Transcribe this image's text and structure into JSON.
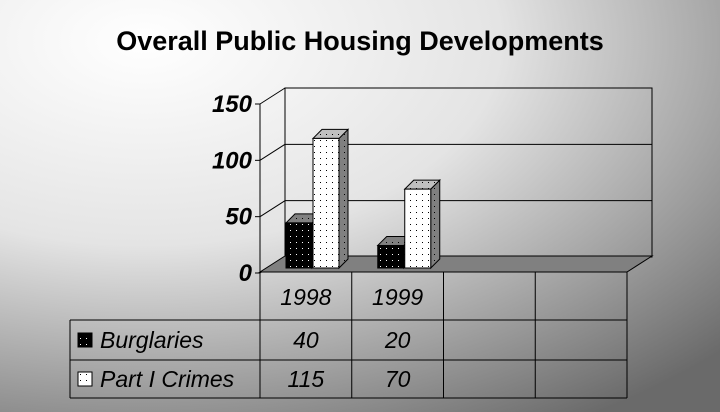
{
  "chart_data": {
    "type": "bar",
    "title": "Overall Public Housing Developments",
    "categories": [
      "1998",
      "1999",
      "",
      ""
    ],
    "series": [
      {
        "name": "Burglaries",
        "values": [
          40,
          20,
          null,
          null
        ],
        "pattern": "black-dotted"
      },
      {
        "name": "Part I Crimes",
        "values": [
          115,
          70,
          null,
          null
        ],
        "pattern": "white-dotted"
      }
    ],
    "ylim": [
      0,
      150
    ],
    "yticks": [
      "0",
      "50",
      "100",
      "150"
    ],
    "ytick_values": [
      0,
      50,
      100,
      150
    ],
    "grid": true,
    "legend": "data-table",
    "table": {
      "rows": [
        {
          "label": "Burglaries",
          "values": [
            "40",
            "20",
            "",
            ""
          ]
        },
        {
          "label": "Part I Crimes",
          "values": [
            "115",
            "70",
            "",
            ""
          ]
        }
      ]
    },
    "colors": {
      "floor": "#808080",
      "side": "#808080",
      "top": "#c0c0c0"
    }
  }
}
